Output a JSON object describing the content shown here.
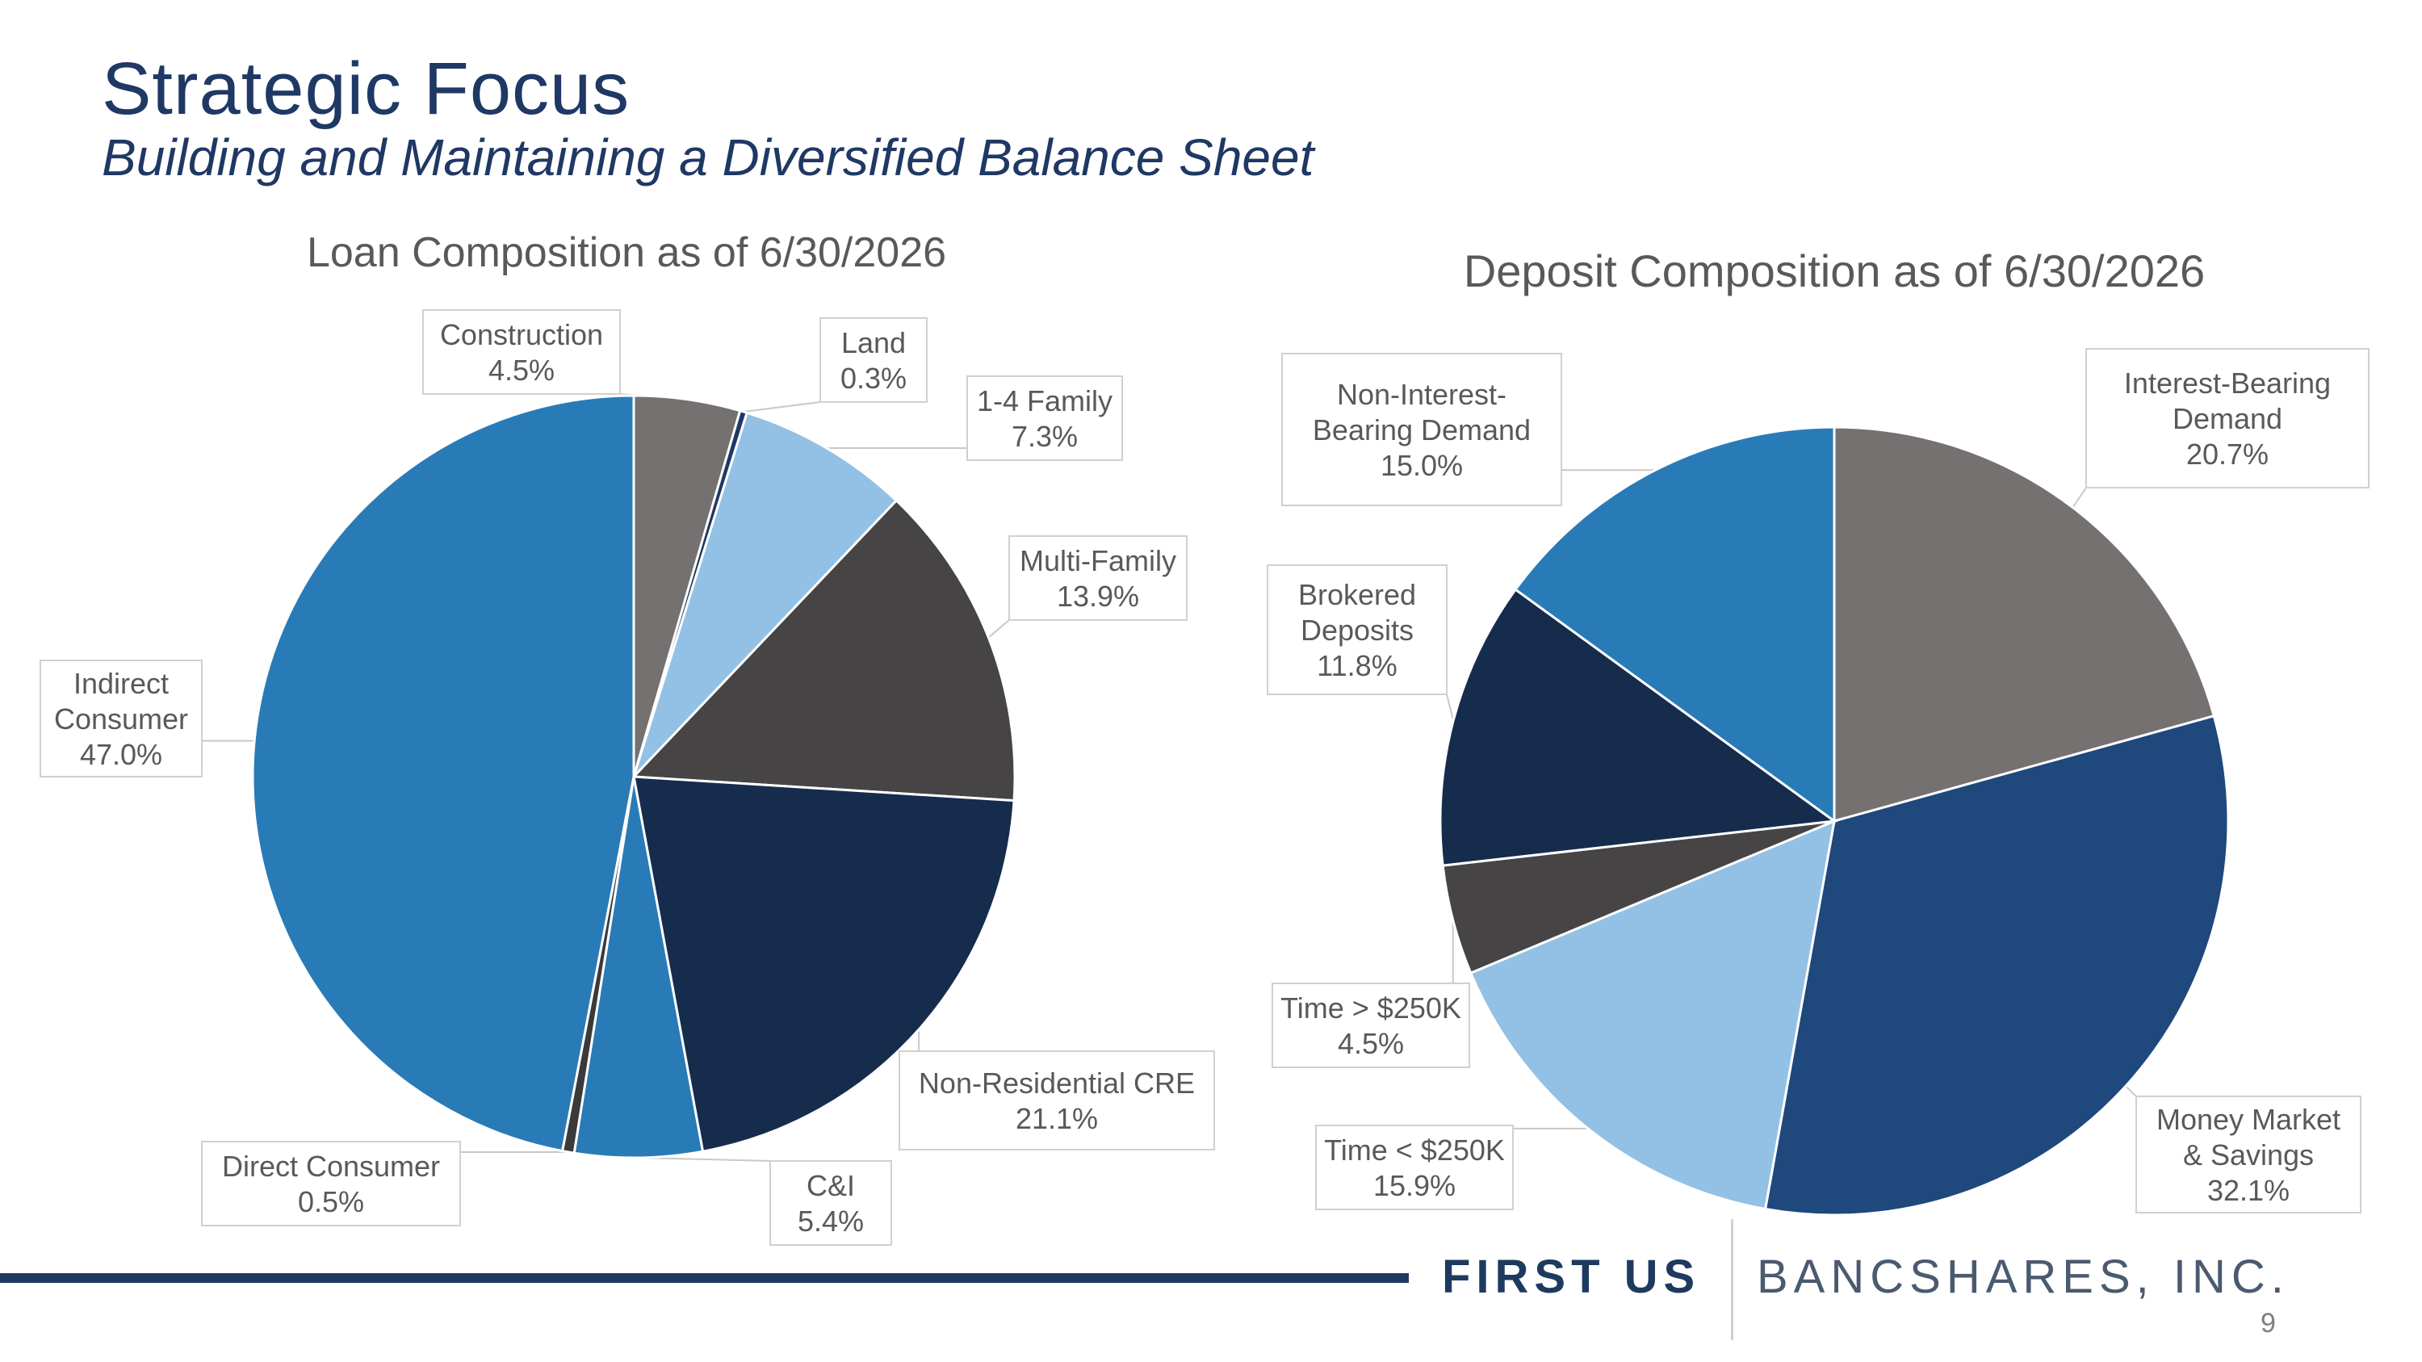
{
  "title": "Strategic Focus",
  "subtitle": "Building and Maintaining a Diversified Balance Sheet",
  "footer": {
    "logo_bold": "FIRST US",
    "logo_light": "BANCSHARES, INC.",
    "page_number": "9"
  },
  "colors": {
    "title": "#1f3864",
    "footer_bar": "#1e3a5f"
  },
  "chart_data": [
    {
      "type": "pie",
      "title": "Loan Composition as of 6/30/2026",
      "start_angle_deg": 0,
      "direction": "clockwise",
      "slices": [
        {
          "label": "Construction",
          "value": 4.5,
          "display": "4.5%",
          "color": "#767171"
        },
        {
          "label": "Land",
          "value": 0.3,
          "display": "0.3%",
          "color": "#1f3864"
        },
        {
          "label": "1-4 Family",
          "value": 7.3,
          "display": "7.3%",
          "color": "#93c1e5"
        },
        {
          "label": "Multi-Family",
          "value": 13.9,
          "display": "13.9%",
          "color": "#464444"
        },
        {
          "label": "Non-Residential CRE",
          "value": 21.1,
          "display": "21.1%",
          "color": "#162c4d"
        },
        {
          "label": "C&I",
          "value": 5.4,
          "display": "5.4%",
          "color": "#297bb7"
        },
        {
          "label": "Direct Consumer",
          "value": 0.5,
          "display": "0.5%",
          "color": "#3a3a3a"
        },
        {
          "label": "Indirect Consumer",
          "value": 47.0,
          "display": "47.0%",
          "color": "#297bb7"
        }
      ]
    },
    {
      "type": "pie",
      "title": "Deposit Composition as of 6/30/2026",
      "start_angle_deg": 0,
      "direction": "clockwise",
      "slices": [
        {
          "label": "Interest-Bearing Demand",
          "value": 20.7,
          "display": "20.7%",
          "color": "#767171"
        },
        {
          "label": "Money Market & Savings",
          "value": 32.1,
          "display": "32.1%",
          "color": "#1f487c"
        },
        {
          "label": "Time < $250K",
          "value": 15.9,
          "display": "15.9%",
          "color": "#93c1e5"
        },
        {
          "label": "Time > $250K",
          "value": 4.5,
          "display": "4.5%",
          "color": "#464444"
        },
        {
          "label": "Brokered Deposits",
          "value": 11.8,
          "display": "11.8%",
          "color": "#162c4d"
        },
        {
          "label": "Non-Interest-Bearing Demand",
          "value": 15.0,
          "display": "15.0%",
          "color": "#297bb7"
        }
      ]
    }
  ]
}
